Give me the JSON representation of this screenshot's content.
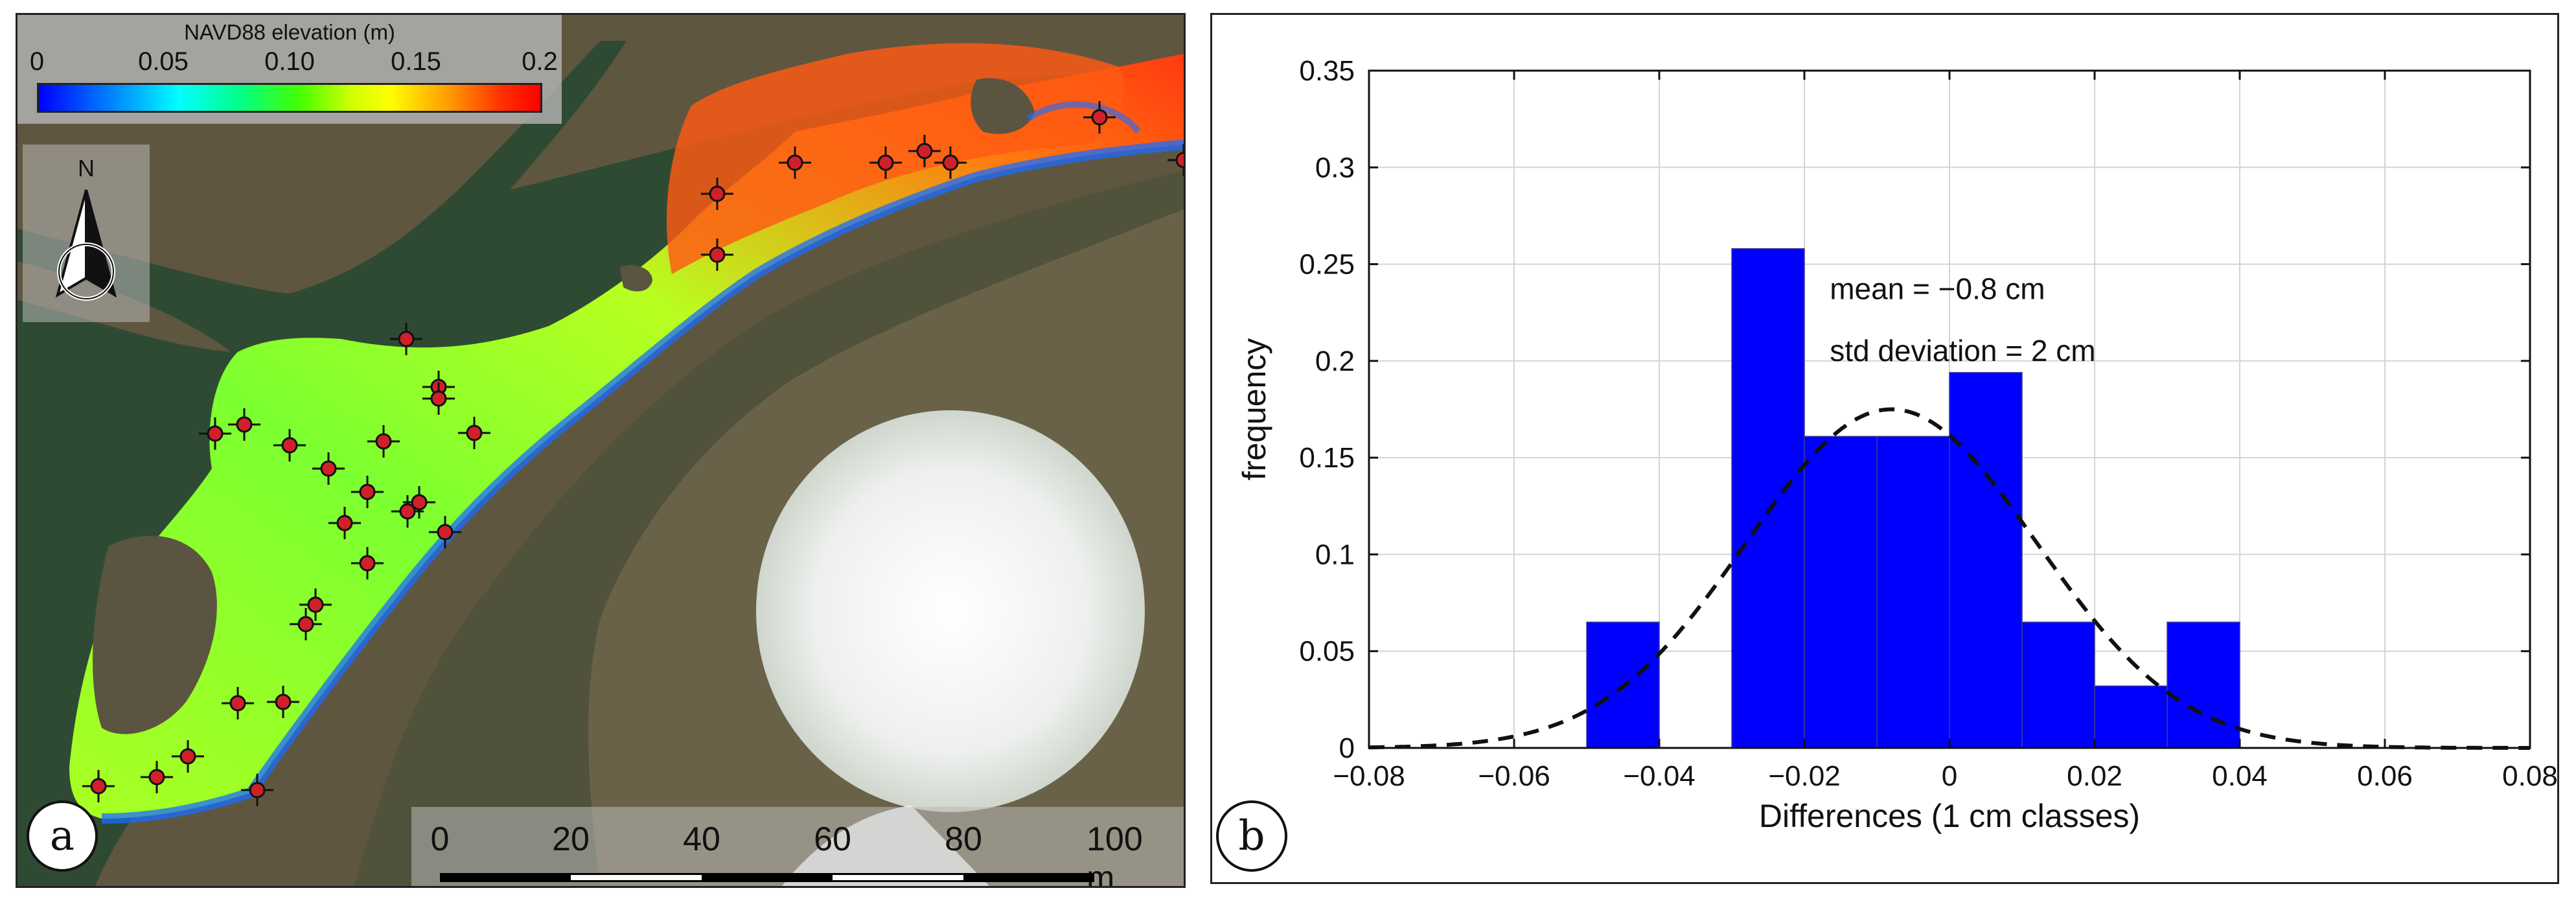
{
  "panel_a": {
    "label": "a",
    "legend": {
      "title": "NAVD88 elevation (m)",
      "ticks": [
        "0",
        "0.05",
        "0.10",
        "0.15",
        "0.2"
      ],
      "colors": [
        "#0000ff",
        "#00ffff",
        "#44ff00",
        "#ffff00",
        "#ff0000"
      ]
    },
    "north_label": "N",
    "scale_bar": {
      "labels": [
        "0",
        "20",
        "40",
        "60",
        "80",
        "100 m"
      ]
    },
    "gcp_marker_color": "#d0202a"
  },
  "panel_b": {
    "label": "b",
    "annotations": {
      "mean": "mean = −0.8 cm",
      "std": "std deviation = 2 cm"
    }
  },
  "chart_data": {
    "type": "bar",
    "title": "",
    "xlabel": "Differences (1 cm classes)",
    "ylabel": "frequency",
    "xlim": [
      -0.08,
      0.08
    ],
    "ylim": [
      0,
      0.35
    ],
    "xticks": [
      -0.08,
      -0.06,
      -0.04,
      -0.02,
      0,
      0.02,
      0.04,
      0.06,
      0.08
    ],
    "xtick_labels": [
      "−0.08",
      "−0.06",
      "−0.04",
      "−0.02",
      "0",
      "0.02",
      "0.04",
      "0.06",
      "0.08"
    ],
    "yticks": [
      0,
      0.05,
      0.1,
      0.15,
      0.2,
      0.25,
      0.3,
      0.35
    ],
    "ytick_labels": [
      "0",
      "0.05",
      "0.1",
      "0.15",
      "0.2",
      "0.25",
      "0.3",
      "0.35"
    ],
    "bin_width": 0.01,
    "bins": [
      {
        "start": -0.05,
        "value": 0.065
      },
      {
        "start": -0.04,
        "value": 0
      },
      {
        "start": -0.03,
        "value": 0.258
      },
      {
        "start": -0.02,
        "value": 0.161
      },
      {
        "start": -0.01,
        "value": 0.161
      },
      {
        "start": 0.0,
        "value": 0.194
      },
      {
        "start": 0.01,
        "value": 0.065
      },
      {
        "start": 0.02,
        "value": 0.032
      },
      {
        "start": 0.03,
        "value": 0.065
      }
    ],
    "bar_color": "#0000ff",
    "normal_fit": {
      "mean": -0.008,
      "std": 0.02,
      "peak": 0.175,
      "style": "dashed"
    },
    "grid": true
  }
}
